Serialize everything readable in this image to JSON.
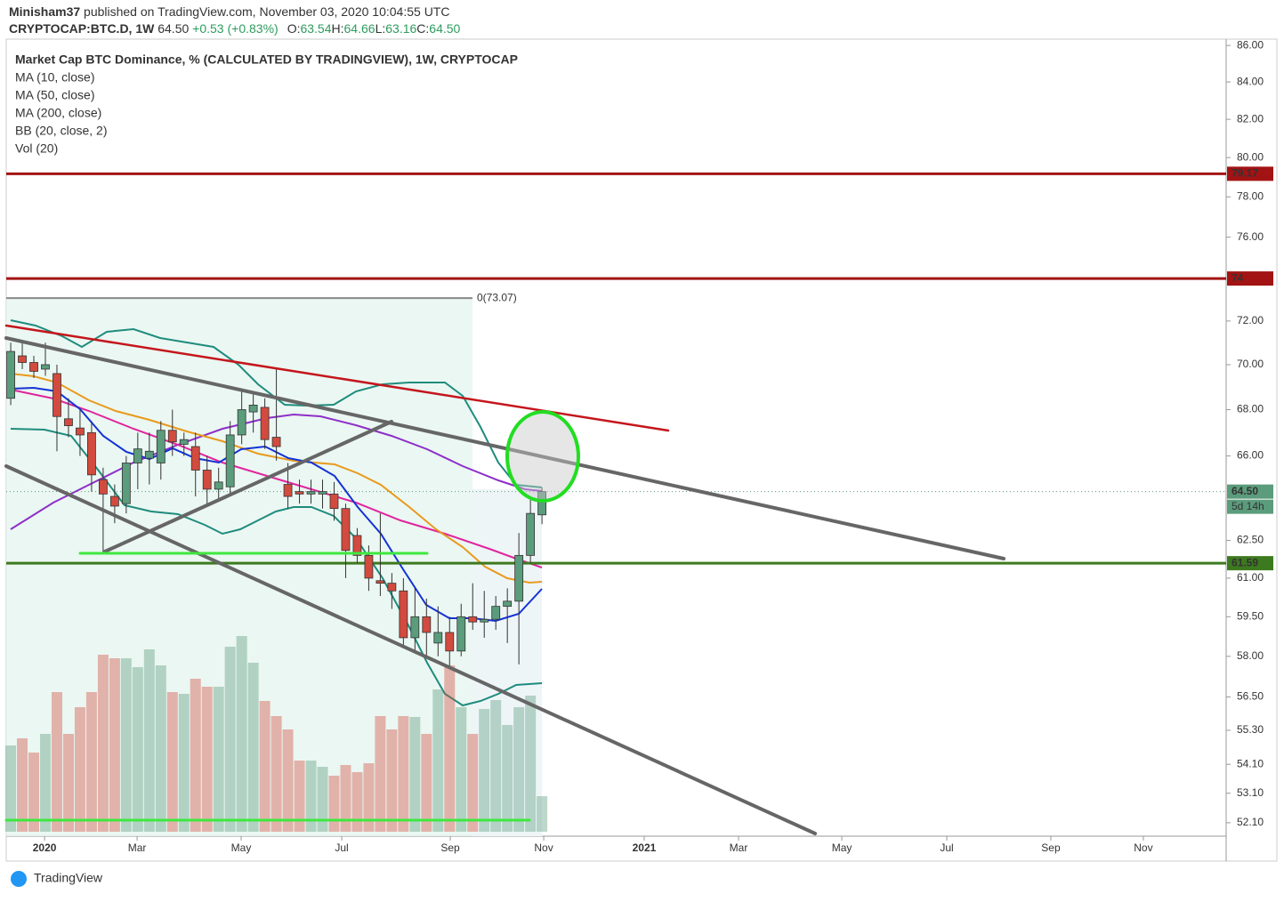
{
  "header": {
    "publisher": "Minisham37",
    "published": "published on TradingView.com, November 03, 2020 10:04:55 UTC",
    "symbol": "CRYPTOCAP:BTC.D, 1W",
    "last": "64.50",
    "change": "+0.53 (+0.83%)",
    "ohlc": [
      {
        "k": "O:",
        "v": "63.54"
      },
      {
        "k": "H:",
        "v": "64.66"
      },
      {
        "k": "L:",
        "v": "63.16"
      },
      {
        "k": "C:",
        "v": "64.50"
      }
    ],
    "brand": "TradingView"
  },
  "chart_data": {
    "type": "candlestick",
    "title": "Market Cap BTC Dominance, % (CALCULATED BY TRADINGVIEW), 1W, CRYPTOCAP",
    "legend": [
      "MA (10, close)",
      "MA (50, close)",
      "MA (200, close)",
      "BB (20, close, 2)",
      "Vol (20)"
    ],
    "log": true,
    "ylim": [
      51.65,
      86.35
    ],
    "yticks": [
      {
        "value": 86,
        "label": "86.00"
      },
      {
        "value": 84,
        "label": "84.00"
      },
      {
        "value": 82,
        "label": "82.00"
      },
      {
        "value": 80,
        "label": "80.00"
      },
      {
        "value": 78,
        "label": "78.00"
      },
      {
        "value": 76,
        "label": "76.00"
      },
      {
        "value": 72,
        "label": "72.00"
      },
      {
        "value": 70,
        "label": "70.00"
      },
      {
        "value": 68,
        "label": "68.00"
      },
      {
        "value": 66,
        "label": "66.00"
      },
      {
        "value": 62.5,
        "label": "62.50"
      },
      {
        "value": 61,
        "label": "61.00"
      },
      {
        "value": 59.5,
        "label": "59.50"
      },
      {
        "value": 58,
        "label": "58.00"
      },
      {
        "value": 56.5,
        "label": "56.50"
      },
      {
        "value": 55.3,
        "label": "55.30"
      },
      {
        "value": 54.1,
        "label": "54.10"
      },
      {
        "value": 53.1,
        "label": "53.10"
      },
      {
        "value": 52.1,
        "label": "52.10"
      }
    ],
    "xlim": [
      -0.39,
      105.24
    ],
    "xticks": [
      {
        "value": 2.93,
        "label": "2020"
      },
      {
        "value": 10.94,
        "label": "Mar"
      },
      {
        "value": 19.95,
        "label": "May"
      },
      {
        "value": 28.66,
        "label": "Jul"
      },
      {
        "value": 38.06,
        "label": "Sep"
      },
      {
        "value": 46.15,
        "label": "Nov"
      },
      {
        "value": 54.85,
        "label": "2021"
      },
      {
        "value": 63.02,
        "label": "Mar"
      },
      {
        "value": 71.96,
        "label": "May"
      },
      {
        "value": 81.05,
        "label": "Jul"
      },
      {
        "value": 90.06,
        "label": "Sep"
      },
      {
        "value": 98.07,
        "label": "Nov"
      }
    ],
    "up_color": "#5b9c7c",
    "down_color": "#d24b3e",
    "open": [
      68.5,
      70.4,
      70.1,
      69.8,
      69.6,
      67.6,
      67.2,
      67.0,
      65.0,
      64.3,
      64.0,
      65.7,
      65.9,
      65.7,
      67.1,
      66.5,
      66.4,
      65.4,
      64.6,
      64.7,
      66.9,
      67.9,
      68.1,
      66.8,
      64.8,
      64.5,
      64.4,
      64.4,
      64.4,
      63.8,
      62.7,
      61.9,
      60.9,
      60.8,
      60.5,
      58.7,
      59.5,
      58.5,
      58.9,
      58.2,
      59.5,
      59.3,
      59.4,
      59.9,
      60.1,
      61.9,
      63.54
    ],
    "high": [
      71,
      71,
      70.4,
      71,
      70,
      68.5,
      68,
      67.5,
      65.5,
      64.8,
      66,
      67,
      67,
      67.5,
      68,
      67,
      67,
      66,
      65.5,
      67.5,
      68.9,
      68.8,
      68.5,
      69.8,
      65.7,
      65,
      65,
      65,
      64.9,
      64,
      63,
      62.3,
      63.6,
      61.2,
      61,
      60.6,
      60.2,
      59.9,
      59.5,
      60,
      60.8,
      60.5,
      60.3,
      60.6,
      62.8,
      64.2,
      64.66
    ],
    "low": [
      68.2,
      69.8,
      69.4,
      69.5,
      66.2,
      66.8,
      66,
      64.5,
      62,
      63.2,
      63.6,
      64.6,
      64.8,
      65,
      66,
      66,
      64.3,
      64,
      64.2,
      64.4,
      66.5,
      67,
      66.3,
      65.8,
      63.8,
      64,
      64,
      63.8,
      63.3,
      61,
      61.6,
      60.5,
      60.3,
      59.8,
      58.3,
      58.2,
      58,
      58,
      57.6,
      58,
      59,
      58.7,
      59,
      58.5,
      57.7,
      61.6,
      63.16
    ],
    "close": [
      70.6,
      70.1,
      69.7,
      70.0,
      67.7,
      67.3,
      66.9,
      65.2,
      64.4,
      63.9,
      65.7,
      66.3,
      66.2,
      67.1,
      66.6,
      66.7,
      65.4,
      64.6,
      64.9,
      66.9,
      68.0,
      68.2,
      66.7,
      66.4,
      64.3,
      64.4,
      64.5,
      64.5,
      63.8,
      62.1,
      61.9,
      61.0,
      60.8,
      60.5,
      58.7,
      59.5,
      58.9,
      58.9,
      58.2,
      59.5,
      59.3,
      59.4,
      59.9,
      60.1,
      61.9,
      63.6,
      64.5
    ],
    "volume": [
      97,
      105,
      89,
      110,
      157,
      110,
      140,
      157,
      199,
      195,
      195,
      185,
      205,
      187,
      157,
      155,
      172,
      163,
      163,
      208,
      220,
      190,
      147,
      130,
      115,
      80,
      80,
      73,
      63,
      75,
      67,
      77,
      130,
      115,
      130,
      129,
      110,
      160,
      187,
      140,
      110,
      138,
      148,
      120,
      140,
      153,
      40
    ],
    "hlines": [
      {
        "value": 79.17,
        "color": "#a31313"
      },
      {
        "value": 74.0,
        "color": "#a31313"
      },
      {
        "value": 61.59,
        "color": "#3d7a1f"
      }
    ],
    "fib": {
      "value": 73.07,
      "label": "0(73.07)"
    },
    "last_price": {
      "value": 64.5,
      "label": "64.50",
      "countdown": "5d 14h"
    }
  }
}
